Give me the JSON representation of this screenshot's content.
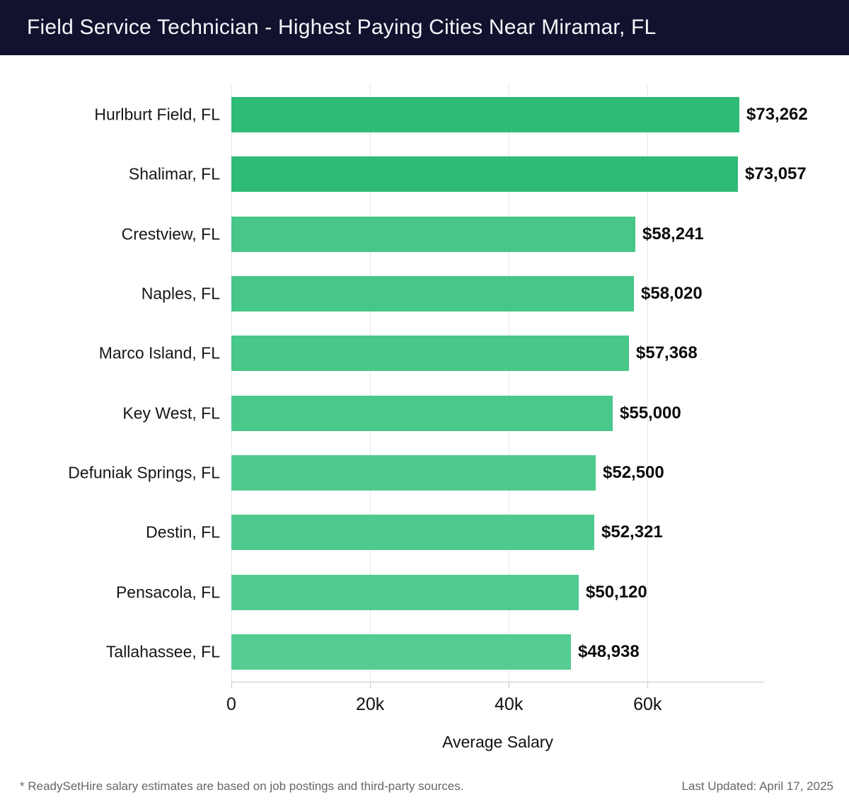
{
  "header": {
    "title": "Field Service Technician - Highest Paying Cities Near Miramar, FL",
    "bg_color": "#12122e",
    "text_color": "#f5f6fa"
  },
  "chart_data": {
    "type": "bar",
    "orientation": "horizontal",
    "title": "Field Service Technician - Highest Paying Cities Near Miramar, FL",
    "categories": [
      "Hurlburt Field, FL",
      "Shalimar, FL",
      "Crestview, FL",
      "Naples, FL",
      "Marco Island, FL",
      "Key West, FL",
      "Defuniak Springs, FL",
      "Destin, FL",
      "Pensacola, FL",
      "Tallahassee, FL"
    ],
    "values": [
      73262,
      73057,
      58241,
      58020,
      57368,
      55000,
      52500,
      52321,
      50120,
      48938
    ],
    "value_labels": [
      "$73,262",
      "$73,057",
      "$58,241",
      "$58,020",
      "$57,368",
      "$55,000",
      "$52,500",
      "$52,321",
      "$50,120",
      "$48,938"
    ],
    "bar_colors": [
      "#2dbb75",
      "#2ebb75",
      "#46c687",
      "#46c687",
      "#47c788",
      "#4ac88b",
      "#4eca8d",
      "#4fca8e",
      "#52cb90",
      "#55cc92"
    ],
    "xlabel": "Average Salary",
    "ylabel": "",
    "xlim": [
      0,
      76800
    ],
    "x_ticks": [
      {
        "value": 0,
        "label": "0"
      },
      {
        "value": 20000,
        "label": "20k"
      },
      {
        "value": 40000,
        "label": "40k"
      },
      {
        "value": 60000,
        "label": "60k"
      }
    ],
    "grid": true,
    "legend": false
  },
  "footer": {
    "note": "* ReadySetHire salary estimates are based on job postings and third-party sources.",
    "last_updated": "Last Updated: April 17, 2025"
  }
}
